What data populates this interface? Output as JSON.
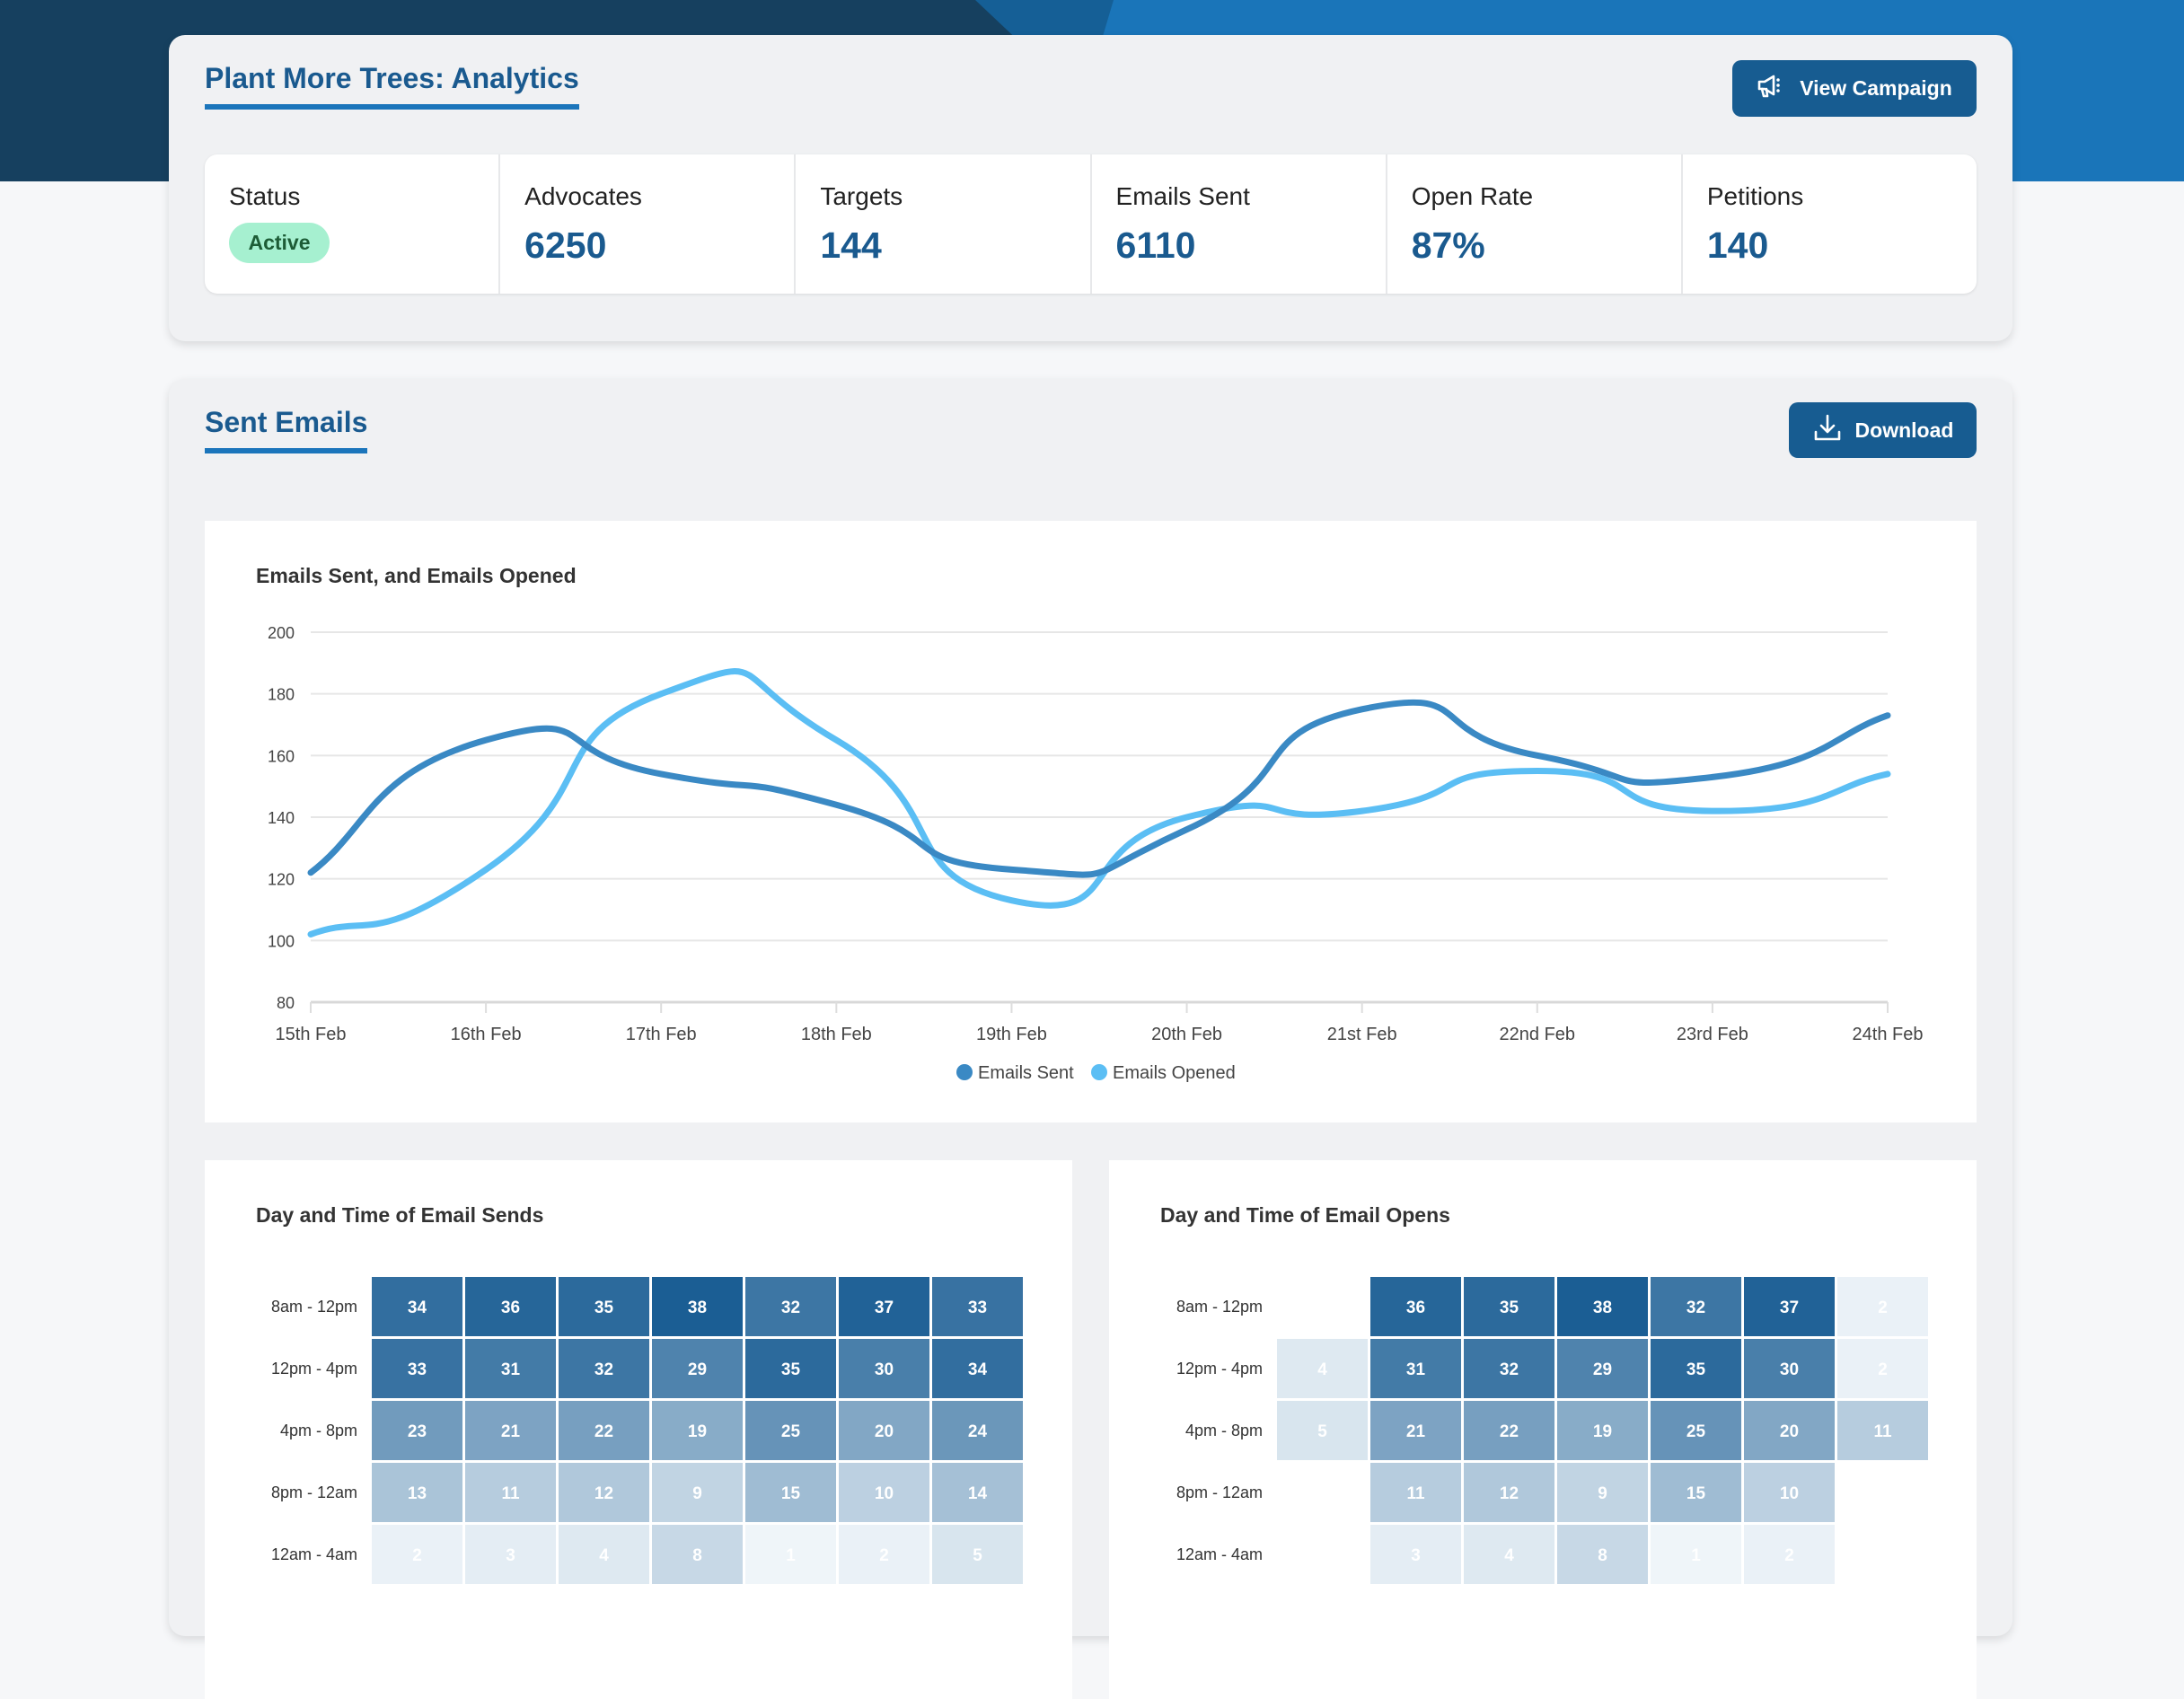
{
  "header": {
    "title": "Plant More Trees: Analytics",
    "view_campaign_label": "View Campaign",
    "status_label": "Status",
    "status_value": "Active",
    "stats": [
      {
        "label": "Advocates",
        "value": "6250"
      },
      {
        "label": "Targets",
        "value": "144"
      },
      {
        "label": "Emails Sent",
        "value": "6110"
      },
      {
        "label": "Open Rate",
        "value": "87%"
      },
      {
        "label": "Petitions",
        "value": "140"
      }
    ]
  },
  "sent_emails": {
    "title": "Sent Emails",
    "download_label": "Download"
  },
  "colors": {
    "sent": "#3a89c4",
    "opened": "#5bbef4",
    "accent": "#175c91",
    "heat_low": "#f5f9fc",
    "heat_high": "#1b5e94"
  },
  "chart_data": {
    "type": "line",
    "title": "Emails Sent, and Emails Opened",
    "xlabel": "",
    "ylabel": "",
    "ylim": [
      80,
      200
    ],
    "yticks": [
      80,
      100,
      120,
      140,
      160,
      180,
      200
    ],
    "categories": [
      "15th Feb",
      "16th Feb",
      "17th Feb",
      "18th Feb",
      "19th Feb",
      "20th Feb",
      "21st Feb",
      "22nd Feb",
      "23rd Feb",
      "24th Feb"
    ],
    "series": [
      {
        "name": "Emails Sent",
        "values": [
          122,
          165,
          154,
          144,
          123,
          136,
          175,
          160,
          153,
          173
        ]
      },
      {
        "name": "Emails Opened",
        "values": [
          102,
          123,
          180,
          165,
          113,
          140,
          142,
          155,
          142,
          154
        ]
      }
    ],
    "grid": true,
    "legend": "bottom-center"
  },
  "heatmaps": [
    {
      "title": "Day and Time of Email Sends",
      "rows": [
        "8am - 12pm",
        "12pm - 4pm",
        "4pm - 8pm",
        "8pm - 12am",
        "12am - 4am"
      ],
      "values": [
        [
          34,
          36,
          35,
          38,
          32,
          37,
          33
        ],
        [
          33,
          31,
          32,
          29,
          35,
          30,
          34
        ],
        [
          23,
          21,
          22,
          19,
          25,
          20,
          24
        ],
        [
          13,
          11,
          12,
          9,
          15,
          10,
          14
        ],
        [
          2,
          3,
          4,
          8,
          1,
          2,
          5
        ]
      ]
    },
    {
      "title": "Day and Time of Email Opens",
      "rows": [
        "8am - 12pm",
        "12pm - 4pm",
        "4pm - 8pm",
        "8pm - 12am",
        "12am - 4am"
      ],
      "values": [
        [
          null,
          36,
          35,
          38,
          32,
          37,
          2
        ],
        [
          4,
          31,
          32,
          29,
          35,
          30,
          2
        ],
        [
          5,
          21,
          22,
          19,
          25,
          20,
          11
        ],
        [
          null,
          11,
          12,
          9,
          15,
          10,
          null
        ],
        [
          null,
          3,
          4,
          8,
          1,
          2,
          null
        ]
      ]
    }
  ]
}
